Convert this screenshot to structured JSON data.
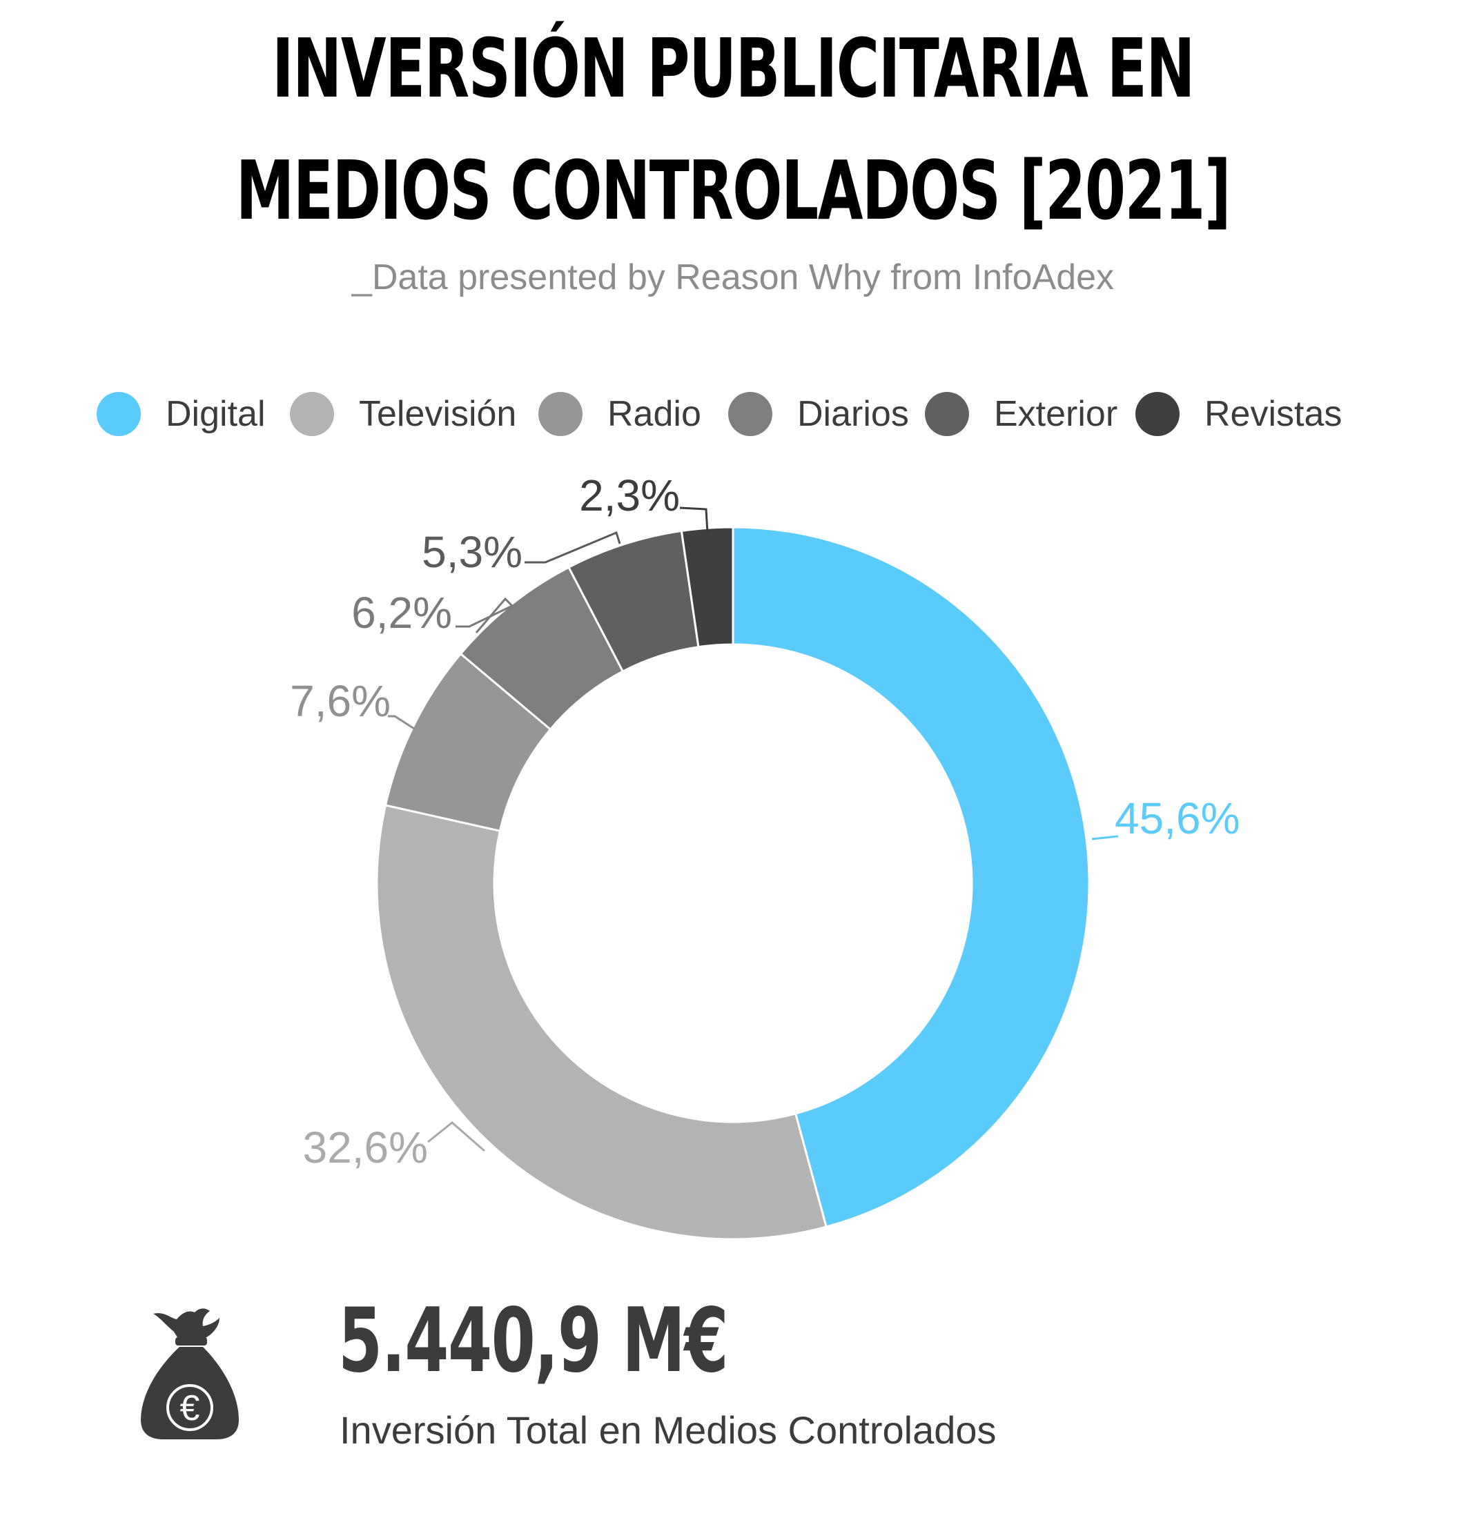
{
  "header": {
    "title_line1": "INVERSIÓN PUBLICITARIA EN",
    "title_line2": "MEDIOS CONTROLADOS [2021]",
    "subtitle": "_Data presented by Reason Why from InfoAdex"
  },
  "chart_data": {
    "type": "pie",
    "donut": true,
    "legend_position": "top",
    "categories": [
      "Digital",
      "Televisión",
      "Radio",
      "Diarios",
      "Exterior",
      "Revistas"
    ],
    "values": [
      45.6,
      32.6,
      7.6,
      6.2,
      5.3,
      2.3
    ],
    "labels": [
      "45,6%",
      "32,6%",
      "7,6%",
      "6,2%",
      "5,3%",
      "2,3%"
    ],
    "colors": [
      "#5bcbfc",
      "#b3b3b3",
      "#969696",
      "#7f7f7f",
      "#606060",
      "#3f3f3f"
    ],
    "label_colors": [
      "#5bcbfc",
      "#aaaaaa",
      "#909090",
      "#7a7a7a",
      "#5a5a5a",
      "#3c3c3c"
    ]
  },
  "summary": {
    "total_value": "5.440,9 M€",
    "total_caption": "Inversión Total en Medios Controlados",
    "icon": "money-bag-euro-icon",
    "icon_color": "#3c3c3c",
    "icon_symbol": "€"
  }
}
